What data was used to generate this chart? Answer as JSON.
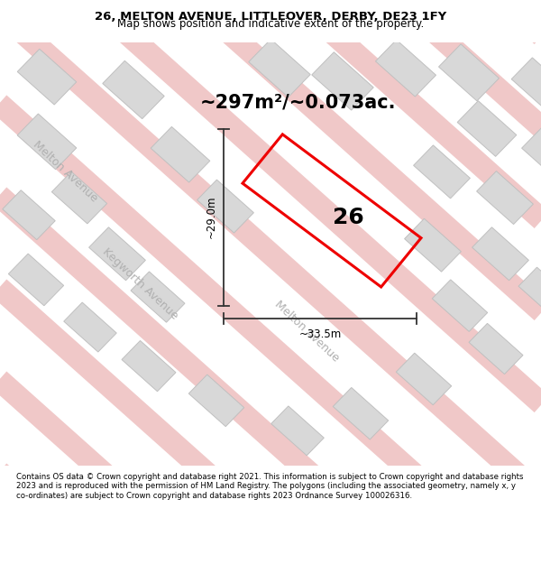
{
  "title": "26, MELTON AVENUE, LITTLEOVER, DERBY, DE23 1FY",
  "subtitle": "Map shows position and indicative extent of the property.",
  "area_label": "~297m²/~0.073ac.",
  "number_label": "26",
  "width_label": "~33.5m",
  "height_label": "~29.0m",
  "footer": "Contains OS data © Crown copyright and database right 2021. This information is subject to Crown copyright and database rights 2023 and is reproduced with the permission of HM Land Registry. The polygons (including the associated geometry, namely x, y co-ordinates) are subject to Crown copyright and database rights 2023 Ordnance Survey 100026316.",
  "map_bg_color": "#f2efef",
  "road_color": "#f0c8c8",
  "building_color": "#d8d8d8",
  "building_edge_color": "#c0c0c0",
  "plot_color": "#ee0000",
  "dim_line_color": "#333333",
  "title_fontsize": 9.5,
  "subtitle_fontsize": 8.5,
  "area_fontsize": 15,
  "number_fontsize": 18,
  "dim_fontsize": 8.5,
  "footer_fontsize": 6.2,
  "street_label_color": "#b0b0b0",
  "street_label_fontsize": 9
}
